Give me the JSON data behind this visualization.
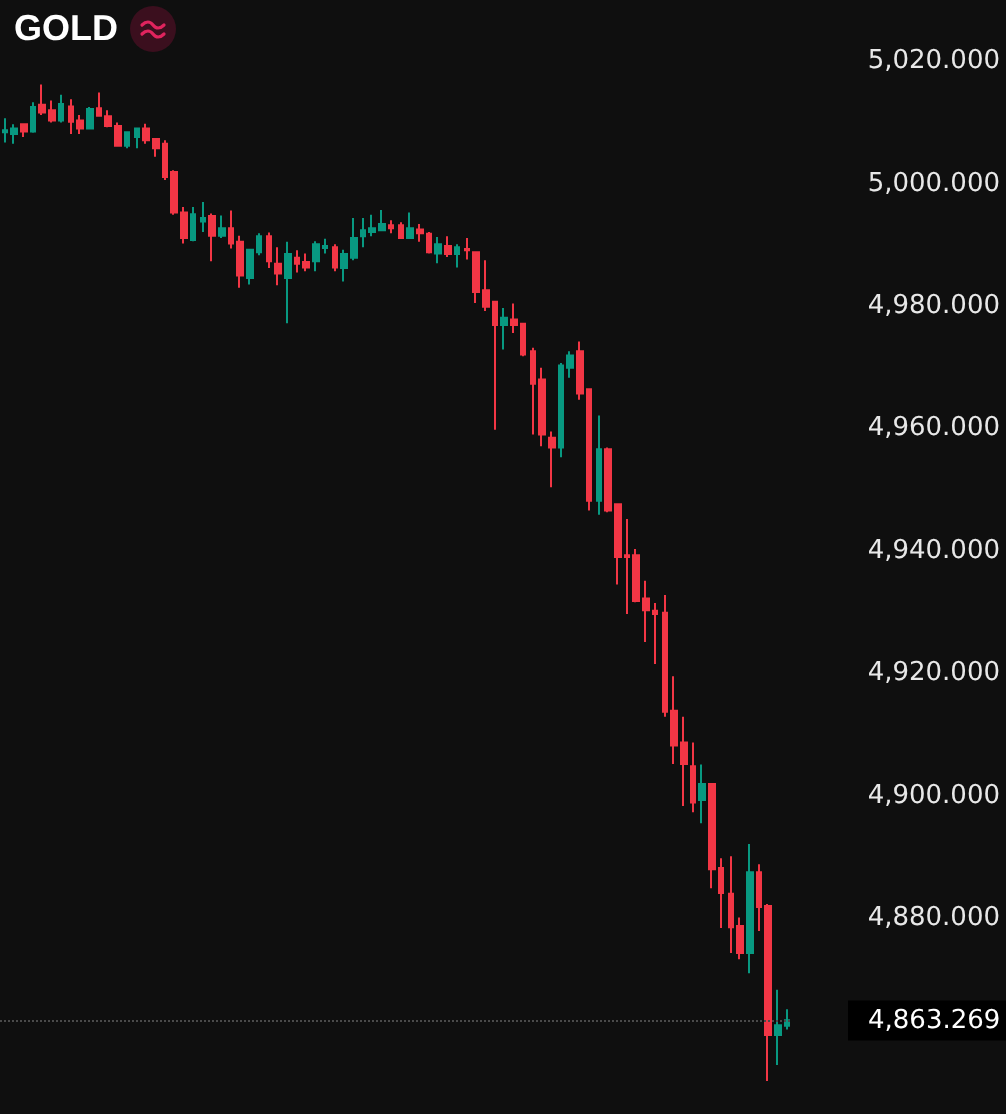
{
  "chart_data": {
    "type": "candlestick",
    "title": "GOLD",
    "categories": [
      null,
      null,
      null,
      null,
      null,
      null,
      null,
      null,
      null,
      null,
      null,
      null,
      null,
      null,
      null,
      null,
      null,
      null,
      null,
      null,
      null,
      null,
      null,
      null,
      null,
      null,
      null,
      null,
      null,
      null,
      null,
      null,
      null,
      null,
      null,
      null,
      null,
      null,
      null,
      null,
      null,
      null,
      null,
      null,
      null,
      null,
      null,
      null,
      null,
      null,
      null,
      null,
      null,
      null,
      null,
      null,
      null,
      null,
      null,
      null,
      null,
      null,
      null,
      null,
      null,
      null,
      null,
      null,
      null,
      null,
      null,
      null,
      null,
      null,
      null,
      null,
      null,
      null,
      null,
      null,
      null,
      null,
      null,
      null
    ],
    "ohlc": [
      [
        5008.4,
        5010.7,
        5006.7,
        5008.7
      ],
      [
        5008.1,
        5009.7,
        5006.5,
        5009.0
      ],
      [
        5009.7,
        5009.7,
        5007.6,
        5008.5
      ],
      [
        5008.5,
        5013.3,
        5008.3,
        5012.5
      ],
      [
        5012.9,
        5016.2,
        5011.2,
        5011.6
      ],
      [
        5012.0,
        5013.6,
        5010.0,
        5010.3
      ],
      [
        5010.3,
        5014.5,
        5010.0,
        5013.0
      ],
      [
        5012.6,
        5013.8,
        5008.1,
        5010.1
      ],
      [
        5010.3,
        5011.2,
        5008.1,
        5009.0
      ],
      [
        5009.0,
        5012.5,
        5009.0,
        5012.2
      ],
      [
        5012.3,
        5014.9,
        5011.1,
        5011.1
      ],
      [
        5011.0,
        5012.0,
        5009.2,
        5009.4
      ],
      [
        5009.4,
        5010.0,
        5006.1,
        5006.2
      ],
      [
        5006.2,
        5008.5,
        5005.8,
        5008.4
      ],
      [
        5007.6,
        5009.0,
        5005.8,
        5009.0
      ],
      [
        5009.0,
        5009.8,
        5006.5,
        5007.1
      ],
      [
        5007.3,
        5007.4,
        5004.4,
        5005.8
      ],
      [
        5006.5,
        5007.1,
        5000.6,
        5001.1
      ],
      [
        5001.9,
        5002.2,
        4994.9,
        4995.3
      ],
      [
        4995.3,
        4996.2,
        4990.2,
        4991.1
      ],
      [
        4990.8,
        4996.2,
        4990.6,
        4995.0
      ],
      [
        4993.8,
        4997.0,
        4992.1,
        4994.4
      ],
      [
        4994.7,
        4995.1,
        4987.3,
        4991.5
      ],
      [
        4991.5,
        4994.8,
        4991.1,
        4992.7
      ],
      [
        4992.7,
        4995.6,
        4989.4,
        4990.2
      ],
      [
        4990.5,
        4991.5,
        4983.0,
        4985.0
      ],
      [
        4984.6,
        4989.2,
        4983.5,
        4989.2
      ],
      [
        4988.8,
        4991.9,
        4988.3,
        4991.4
      ],
      [
        4991.4,
        4992.0,
        4986.2,
        4987.3
      ],
      [
        4986.9,
        4989.6,
        4983.4,
        4985.3
      ],
      [
        4984.6,
        4990.5,
        4977.2,
        4988.5
      ],
      [
        4987.9,
        4989.1,
        4985.5,
        4986.9
      ],
      [
        4987.2,
        4988.6,
        4985.7,
        4986.3
      ],
      [
        4987.3,
        4990.6,
        4985.7,
        4990.1
      ],
      [
        4989.5,
        4991.0,
        4988.6,
        4989.8
      ],
      [
        4989.6,
        4990.1,
        4985.7,
        4986.3
      ],
      [
        4986.2,
        4989.2,
        4984.0,
        4988.5
      ],
      [
        4987.9,
        4994.4,
        4987.5,
        4991.1
      ],
      [
        4991.4,
        4994.4,
        4989.6,
        4992.4
      ],
      [
        4992.1,
        4994.9,
        4991.4,
        4992.7
      ],
      [
        4992.4,
        4995.7,
        4992.4,
        4993.4
      ],
      [
        4993.2,
        4994.0,
        4991.9,
        4992.7
      ],
      [
        4993.2,
        4993.7,
        4991.1,
        4991.1
      ],
      [
        4991.1,
        4995.3,
        4991.1,
        4992.7
      ],
      [
        4992.5,
        4993.4,
        4990.5,
        4991.9
      ],
      [
        4991.8,
        4992.1,
        4988.6,
        4988.8
      ],
      [
        4988.6,
        4991.3,
        4987.0,
        4990.1
      ],
      [
        4989.8,
        4991.4,
        4988.0,
        4988.5
      ],
      [
        4988.5,
        4990.1,
        4986.3,
        4989.6
      ],
      [
        4989.3,
        4991.1,
        4987.6,
        4989.1
      ],
      [
        4988.8,
        4988.8,
        4980.5,
        4982.3
      ],
      [
        4982.6,
        4987.5,
        4979.2,
        4979.9
      ],
      [
        4980.7,
        4980.7,
        4959.8,
        4976.9
      ],
      [
        4976.9,
        4979.7,
        4972.9,
        4978.1
      ],
      [
        4977.8,
        4980.4,
        4975.6,
        4976.9
      ],
      [
        4977.1,
        4977.1,
        4971.8,
        4972.1
      ],
      [
        4972.6,
        4973.2,
        4959.0,
        4967.3
      ],
      [
        4968.0,
        4969.9,
        4957.1,
        4959.0
      ],
      [
        4958.5,
        4959.5,
        4950.4,
        4956.9
      ],
      [
        4956.9,
        4970.7,
        4955.3,
        4970.3
      ],
      [
        4969.9,
        4972.6,
        4968.3,
        4971.9
      ],
      [
        4972.6,
        4974.2,
        4964.7,
        4965.7
      ],
      [
        4966.4,
        4966.4,
        4946.6,
        4948.2
      ],
      [
        4948.2,
        4962.1,
        4945.9,
        4956.6
      ],
      [
        4956.6,
        4956.9,
        4946.3,
        4946.6
      ],
      [
        4947.6,
        4947.8,
        4934.5,
        4939.0
      ],
      [
        4939.3,
        4945.2,
        4929.7,
        4939.0
      ],
      [
        4939.3,
        4940.3,
        4931.6,
        4931.8
      ],
      [
        4932.2,
        4935.1,
        4925.1,
        4930.3
      ],
      [
        4930.2,
        4931.5,
        4921.5,
        4929.7
      ],
      [
        4929.9,
        4932.8,
        4912.9,
        4913.7
      ],
      [
        4913.9,
        4919.5,
        4905.2,
        4908.2
      ],
      [
        4908.7,
        4912.9,
        4898.3,
        4905.2
      ],
      [
        4904.8,
        4908.7,
        4897.3,
        4898.9
      ],
      [
        4899.3,
        4905.1,
        4895.5,
        4901.9
      ],
      [
        4901.9,
        4901.9,
        4884.9,
        4888.0
      ],
      [
        4888.2,
        4889.8,
        4878.4,
        4884.1
      ],
      [
        4884.0,
        4890.1,
        4874.3,
        4878.5
      ],
      [
        4878.7,
        4880.1,
        4873.3,
        4874.3
      ],
      [
        4874.3,
        4892.1,
        4871.0,
        4887.5
      ],
      [
        4887.5,
        4888.8,
        4877.9,
        4881.8
      ],
      [
        4882.0,
        4882.3,
        4853.4,
        4860.9
      ],
      [
        4860.9,
        4868.3,
        4856.0,
        4862.5
      ],
      [
        4862.4,
        4865.1,
        4861.8,
        4863.3
      ]
    ],
    "colors": [
      "#089981",
      "#089981",
      "#f23645",
      "#089981",
      "#f23645",
      "#f23645",
      "#089981",
      "#f23645",
      "#f23645",
      "#089981",
      "#f23645",
      "#f23645",
      "#f23645",
      "#089981",
      "#089981",
      "#f23645",
      "#f23645",
      "#f23645",
      "#f23645",
      "#f23645",
      "#089981",
      "#089981",
      "#f23645",
      "#089981",
      "#f23645",
      "#f23645",
      "#089981",
      "#089981",
      "#f23645",
      "#f23645",
      "#089981",
      "#f23645",
      "#f23645",
      "#089981",
      "#089981",
      "#f23645",
      "#089981",
      "#089981",
      "#089981",
      "#089981",
      "#089981",
      "#f23645",
      "#f23645",
      "#089981",
      "#f23645",
      "#f23645",
      "#089981",
      "#f23645",
      "#089981",
      "#f23645",
      "#f23645",
      "#f23645",
      "#f23645",
      "#089981",
      "#f23645",
      "#f23645",
      "#f23645",
      "#f23645",
      "#f23645",
      "#089981",
      "#089981",
      "#f23645",
      "#f23645",
      "#089981",
      "#f23645",
      "#f23645",
      "#f23645",
      "#f23645",
      "#f23645",
      "#f23645",
      "#f23645",
      "#f23645",
      "#f23645",
      "#f23645",
      "#089981",
      "#f23645",
      "#f23645",
      "#f23645",
      "#f23645",
      "#089981",
      "#f23645",
      "#f23645",
      "#089981",
      "#089981"
    ],
    "ylim": [
      4848,
      5030
    ],
    "yticks": [
      {
        "value": 4880,
        "label": "4,880.000"
      },
      {
        "value": 4900,
        "label": "4,900.000"
      },
      {
        "value": 4920,
        "label": "4,920.000"
      },
      {
        "value": 4940,
        "label": "4,940.000"
      },
      {
        "value": 4960,
        "label": "4,960.000"
      },
      {
        "value": 4980,
        "label": "4,980.000"
      },
      {
        "value": 5000,
        "label": "5,000.000"
      },
      {
        "value": 5020,
        "label": "5,020.000"
      }
    ],
    "ref_lines": [
      {
        "axis": "y",
        "value": 4863.269,
        "label": "4,863.269",
        "color": "#4a4a4a",
        "line_style": "dotted"
      }
    ],
    "tick_labels": "y"
  }
}
